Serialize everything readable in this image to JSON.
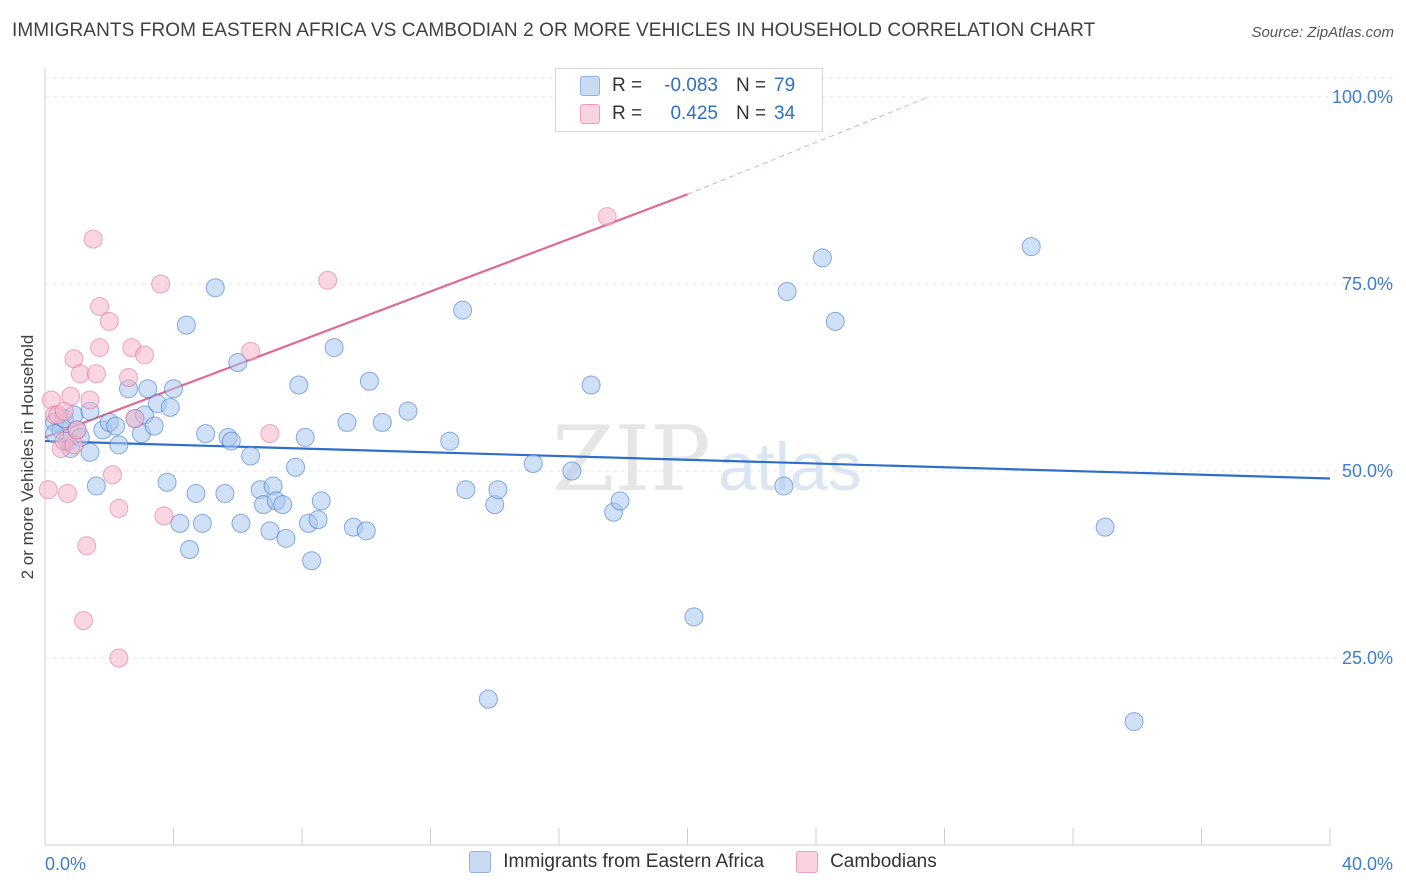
{
  "title": "IMMIGRANTS FROM EASTERN AFRICA VS CAMBODIAN 2 OR MORE VEHICLES IN HOUSEHOLD CORRELATION CHART",
  "source": "Source: ZipAtlas.com",
  "watermark": {
    "zip": "ZIP",
    "atlas": "atlas"
  },
  "stats": [
    {
      "r_label": "R =",
      "r_value": "-0.083",
      "n_label": "N =",
      "n_value": "79",
      "color": "#a9c6ee"
    },
    {
      "r_label": "R =",
      "r_value": "0.425",
      "n_label": "N =",
      "n_value": "34",
      "color": "#f4b5cb"
    }
  ],
  "legend": [
    {
      "label": "Immigrants from Eastern Africa",
      "color": "#a9c6ee"
    },
    {
      "label": "Cambodians",
      "color": "#f4b5cb"
    }
  ],
  "chart_data": {
    "type": "scatter",
    "title": "IMMIGRANTS FROM EASTERN AFRICA VS CAMBODIAN 2 OR MORE VEHICLES IN HOUSEHOLD CORRELATION CHART",
    "xlabel": "",
    "ylabel": "2 or more Vehicles in Household",
    "xlim": [
      0,
      40
    ],
    "ylim": [
      0,
      103
    ],
    "x_tick_labels": [
      "0.0%",
      "40.0%"
    ],
    "y_ticks": [
      25,
      50,
      75,
      100
    ],
    "y_tick_labels": [
      "25.0%",
      "50.0%",
      "75.0%",
      "100.0%"
    ],
    "grid": true,
    "series": [
      {
        "name": "Immigrants from Eastern Africa",
        "color": "#2f6fc9",
        "fill": "#a9c6ee",
        "trend": {
          "x": [
            0,
            40
          ],
          "y": [
            54.0,
            49.0
          ]
        },
        "points": [
          [
            0.3,
            56.5
          ],
          [
            0.5,
            55.5
          ],
          [
            0.6,
            57.0
          ],
          [
            0.7,
            54.0
          ],
          [
            0.8,
            53.0
          ],
          [
            0.9,
            57.5
          ],
          [
            1.0,
            55.5
          ],
          [
            1.1,
            54.5
          ],
          [
            1.4,
            52.5
          ],
          [
            1.4,
            58.0
          ],
          [
            1.6,
            48.0
          ],
          [
            1.8,
            55.5
          ],
          [
            2.0,
            56.5
          ],
          [
            2.2,
            56.0
          ],
          [
            2.3,
            53.5
          ],
          [
            2.6,
            61.0
          ],
          [
            2.8,
            57.0
          ],
          [
            3.0,
            55.0
          ],
          [
            3.1,
            57.5
          ],
          [
            3.2,
            61.0
          ],
          [
            3.4,
            56.0
          ],
          [
            3.5,
            59.0
          ],
          [
            3.8,
            48.5
          ],
          [
            3.9,
            58.5
          ],
          [
            4.0,
            61.0
          ],
          [
            4.2,
            43.0
          ],
          [
            4.4,
            69.5
          ],
          [
            4.5,
            39.5
          ],
          [
            4.7,
            47.0
          ],
          [
            4.9,
            43.0
          ],
          [
            5.0,
            55.0
          ],
          [
            5.3,
            74.5
          ],
          [
            5.6,
            47.0
          ],
          [
            5.7,
            54.5
          ],
          [
            5.8,
            54.0
          ],
          [
            6.0,
            64.5
          ],
          [
            6.1,
            43.0
          ],
          [
            6.4,
            52.0
          ],
          [
            6.7,
            47.5
          ],
          [
            6.8,
            45.5
          ],
          [
            7.0,
            42.0
          ],
          [
            7.1,
            48.0
          ],
          [
            7.2,
            46.0
          ],
          [
            7.4,
            45.5
          ],
          [
            7.5,
            41.0
          ],
          [
            7.8,
            50.5
          ],
          [
            7.9,
            61.5
          ],
          [
            8.1,
            54.5
          ],
          [
            8.2,
            43.0
          ],
          [
            8.3,
            38.0
          ],
          [
            8.5,
            43.5
          ],
          [
            8.6,
            46.0
          ],
          [
            9.0,
            66.5
          ],
          [
            9.4,
            56.5
          ],
          [
            9.6,
            42.5
          ],
          [
            10.0,
            42.0
          ],
          [
            10.1,
            62.0
          ],
          [
            10.5,
            56.5
          ],
          [
            11.3,
            58.0
          ],
          [
            12.6,
            54.0
          ],
          [
            13.0,
            71.5
          ],
          [
            13.1,
            47.5
          ],
          [
            13.8,
            19.5
          ],
          [
            14.0,
            45.5
          ],
          [
            14.1,
            47.5
          ],
          [
            15.2,
            51.0
          ],
          [
            16.4,
            50.0
          ],
          [
            17.0,
            61.5
          ],
          [
            17.7,
            44.5
          ],
          [
            17.9,
            46.0
          ],
          [
            20.2,
            30.5
          ],
          [
            23.0,
            48.0
          ],
          [
            23.1,
            74.0
          ],
          [
            24.2,
            78.5
          ],
          [
            24.6,
            70.0
          ],
          [
            30.7,
            80.0
          ],
          [
            33.0,
            42.5
          ],
          [
            33.9,
            16.5
          ],
          [
            0.3,
            55.0
          ]
        ]
      },
      {
        "name": "Cambodians",
        "color": "#e06a93",
        "fill": "#f4b5cb",
        "trend": {
          "x": [
            0,
            20
          ],
          "y": [
            54.5,
            87.0
          ]
        },
        "trend_ext": {
          "x": [
            20,
            27.5
          ],
          "y": [
            87.0,
            100.0
          ]
        },
        "points": [
          [
            0.1,
            47.5
          ],
          [
            0.2,
            59.5
          ],
          [
            0.3,
            57.5
          ],
          [
            0.4,
            57.5
          ],
          [
            0.5,
            53.0
          ],
          [
            0.6,
            58.0
          ],
          [
            0.6,
            54.0
          ],
          [
            0.7,
            47.0
          ],
          [
            0.8,
            60.0
          ],
          [
            0.9,
            53.5
          ],
          [
            0.9,
            65.0
          ],
          [
            1.0,
            55.5
          ],
          [
            1.1,
            63.0
          ],
          [
            1.2,
            30.0
          ],
          [
            1.3,
            40.0
          ],
          [
            1.4,
            59.5
          ],
          [
            1.5,
            81.0
          ],
          [
            1.6,
            63.0
          ],
          [
            1.7,
            72.0
          ],
          [
            1.7,
            66.5
          ],
          [
            2.0,
            70.0
          ],
          [
            2.1,
            49.5
          ],
          [
            2.3,
            45.0
          ],
          [
            2.3,
            25.0
          ],
          [
            2.6,
            62.5
          ],
          [
            2.7,
            66.5
          ],
          [
            2.8,
            57.0
          ],
          [
            3.1,
            65.5
          ],
          [
            3.6,
            75.0
          ],
          [
            3.7,
            44.0
          ],
          [
            6.4,
            66.0
          ],
          [
            7.0,
            55.0
          ],
          [
            8.8,
            75.5
          ],
          [
            17.5,
            84.0
          ]
        ]
      }
    ]
  }
}
